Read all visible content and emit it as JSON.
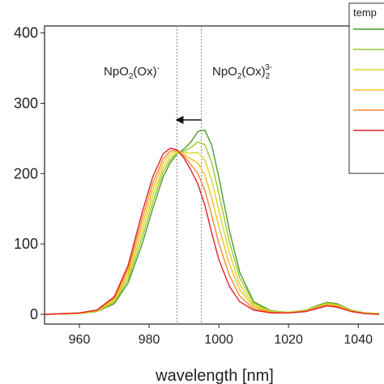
{
  "chart_data": {
    "type": "line",
    "x_label": "wavelength [nm]",
    "legend_title": "temp",
    "x": [
      950,
      960,
      965,
      970,
      974,
      978,
      981,
      984,
      986,
      988,
      990,
      992,
      994,
      996,
      998,
      1000,
      1003,
      1006,
      1010,
      1015,
      1020,
      1025,
      1028,
      1031,
      1034,
      1038,
      1042,
      1046
    ],
    "series": [
      {
        "color": "#4f9a2a",
        "values": [
          0,
          1,
          4,
          15,
          45,
          100,
          150,
          195,
          215,
          228,
          235,
          245,
          260,
          262,
          240,
          195,
          120,
          60,
          18,
          5,
          3,
          6,
          12,
          17,
          15,
          6,
          2,
          1
        ]
      },
      {
        "color": "#9cc832",
        "values": [
          0,
          1,
          4,
          17,
          50,
          109,
          159,
          202,
          219,
          229,
          232,
          237,
          245,
          241,
          215,
          172,
          104,
          52,
          16,
          4,
          3,
          6,
          11,
          16,
          14,
          6,
          2,
          1
        ]
      },
      {
        "color": "#d6d52a",
        "values": [
          0,
          1,
          5,
          19,
          55,
          118,
          168,
          208,
          223,
          230,
          230,
          229,
          230,
          219,
          190,
          148,
          88,
          43,
          13,
          4,
          3,
          5,
          10,
          15,
          13,
          5,
          2,
          1
        ]
      },
      {
        "color": "#f2c21e",
        "values": [
          0,
          2,
          5,
          21,
          60,
          127,
          177,
          215,
          228,
          232,
          227,
          221,
          215,
          198,
          165,
          125,
          72,
          35,
          11,
          3,
          2,
          5,
          10,
          14,
          12,
          5,
          1,
          0
        ]
      },
      {
        "color": "#f08a30",
        "values": [
          0,
          2,
          6,
          23,
          65,
          136,
          186,
          221,
          232,
          233,
          225,
          213,
          200,
          176,
          140,
          101,
          56,
          26,
          8,
          3,
          2,
          4,
          9,
          13,
          11,
          4,
          1,
          0
        ]
      },
      {
        "color": "#e4202c",
        "values": [
          0,
          2,
          6,
          25,
          70,
          145,
          195,
          228,
          236,
          234,
          222,
          205,
          185,
          155,
          115,
          78,
          40,
          18,
          6,
          2,
          2,
          4,
          8,
          12,
          10,
          4,
          1,
          0
        ]
      }
    ],
    "xlim": [
      950,
      1046
    ],
    "xticks": [
      960,
      980,
      1000,
      1020,
      1040
    ],
    "ylim": [
      0,
      410
    ],
    "yticks": [
      0,
      100,
      200,
      300,
      400
    ],
    "vlines": [
      988,
      995
    ],
    "annotations": [
      {
        "parts": [
          "NpO",
          "2",
          "(Ox)",
          "-"
        ]
      },
      {
        "parts": [
          "NpO",
          "2",
          "(Ox)",
          "2",
          "3-"
        ]
      }
    ]
  }
}
